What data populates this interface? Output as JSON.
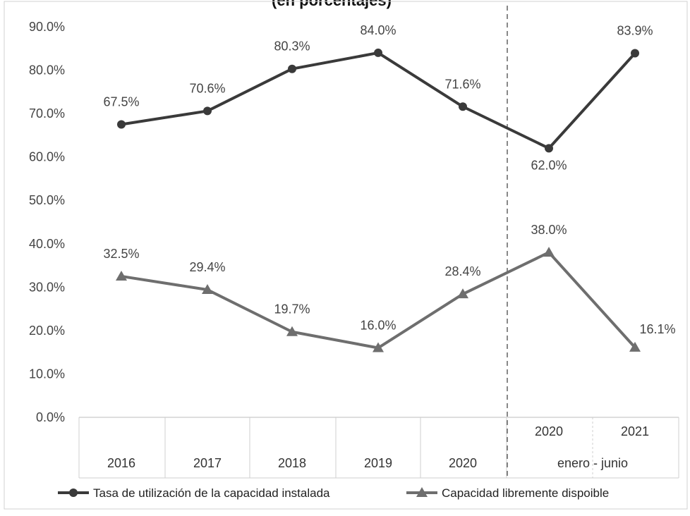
{
  "chart_data": {
    "type": "line",
    "title": "(en porcentajes)",
    "ylim": [
      0,
      90
    ],
    "y_ticks": [
      "0.0%",
      "10.0%",
      "20.0%",
      "30.0%",
      "40.0%",
      "50.0%",
      "60.0%",
      "70.0%",
      "80.0%",
      "90.0%"
    ],
    "grid": false,
    "x_categories": [
      {
        "label": "2016",
        "group": ""
      },
      {
        "label": "2017",
        "group": ""
      },
      {
        "label": "2018",
        "group": ""
      },
      {
        "label": "2019",
        "group": ""
      },
      {
        "label": "2020",
        "group": ""
      },
      {
        "label": "2020",
        "group": "enero - junio"
      },
      {
        "label": "2021",
        "group": "enero - junio"
      }
    ],
    "group_label": "enero - junio",
    "series": [
      {
        "name": "Tasa de utilización de la capacidad instalada",
        "values": [
          67.5,
          70.6,
          80.3,
          84.0,
          71.6,
          62.0,
          83.9
        ],
        "labels": [
          "67.5%",
          "70.6%",
          "80.3%",
          "84.0%",
          "71.6%",
          "62.0%",
          "83.9%"
        ],
        "color": "#3a3a3a",
        "marker": "circle"
      },
      {
        "name": "Capacidad libremente dispoible",
        "values": [
          32.5,
          29.4,
          19.7,
          16.0,
          28.4,
          38.0,
          16.1
        ],
        "labels": [
          "32.5%",
          "29.4%",
          "19.7%",
          "16.0%",
          "28.4%",
          "38.0%",
          "16.1%"
        ],
        "color": "#6e6e6e",
        "marker": "triangle"
      }
    ],
    "legend_position": "bottom"
  }
}
